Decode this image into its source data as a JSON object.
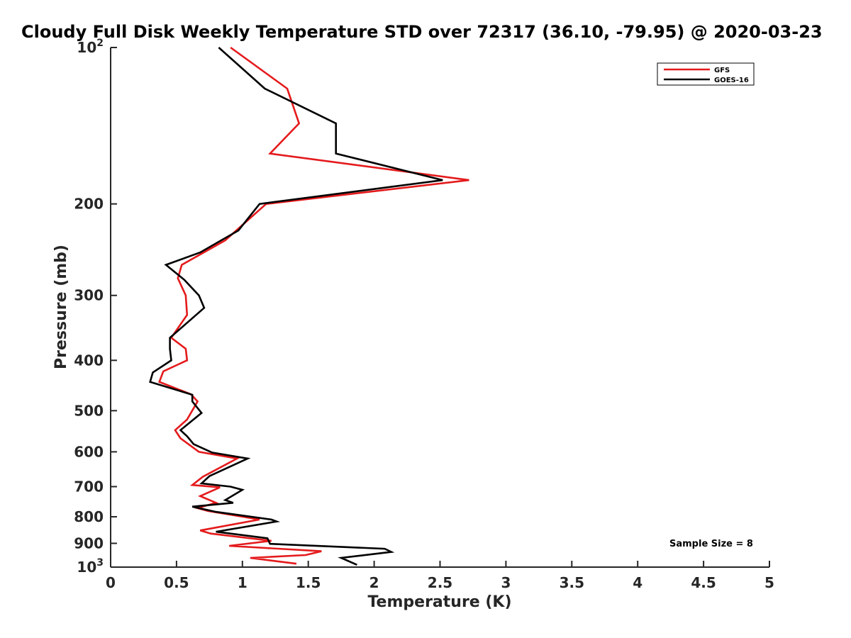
{
  "chart_data": {
    "type": "line",
    "title": "Cloudy Full Disk Weekly Temperature STD over 72317 (36.10, -79.95) @ 2020-03-23",
    "xlabel": "Temperature (K)",
    "ylabel": "Pressure (mb)",
    "xlim": [
      0,
      5
    ],
    "ylim": [
      100,
      1000
    ],
    "y_scale": "log",
    "y_reversed": true,
    "x_ticks": [
      "0",
      "0.5",
      "1",
      "1.5",
      "2",
      "2.5",
      "3",
      "3.5",
      "4",
      "4.5",
      "5"
    ],
    "y_ticks": [
      {
        "value": 100,
        "base": "10",
        "exp": "2"
      },
      {
        "value": 200,
        "label": "200"
      },
      {
        "value": 300,
        "label": "300"
      },
      {
        "value": 400,
        "label": "400"
      },
      {
        "value": 500,
        "label": "500"
      },
      {
        "value": 600,
        "label": "600"
      },
      {
        "value": 700,
        "label": "700"
      },
      {
        "value": 800,
        "label": "800"
      },
      {
        "value": 900,
        "label": "900"
      },
      {
        "value": 1000,
        "base": "10",
        "exp": "3"
      }
    ],
    "legend_position": "top-right",
    "annotation": "Sample Size = 8",
    "series": [
      {
        "name": "GFS",
        "color": "#e41a1c",
        "points": [
          [
            0.91,
            100
          ],
          [
            1.34,
            120
          ],
          [
            1.43,
            140
          ],
          [
            1.21,
            160
          ],
          [
            2.72,
            180
          ],
          [
            1.18,
            200
          ],
          [
            0.87,
            235
          ],
          [
            0.54,
            262
          ],
          [
            0.51,
            278
          ],
          [
            0.57,
            300
          ],
          [
            0.58,
            327
          ],
          [
            0.46,
            362
          ],
          [
            0.57,
            380
          ],
          [
            0.58,
            400
          ],
          [
            0.4,
            420
          ],
          [
            0.37,
            440
          ],
          [
            0.61,
            465
          ],
          [
            0.66,
            480
          ],
          [
            0.58,
            520
          ],
          [
            0.49,
            545
          ],
          [
            0.53,
            565
          ],
          [
            0.67,
            600
          ],
          [
            0.96,
            618
          ],
          [
            0.7,
            670
          ],
          [
            0.62,
            695
          ],
          [
            0.83,
            702
          ],
          [
            0.68,
            730
          ],
          [
            0.8,
            752
          ],
          [
            0.66,
            770
          ],
          [
            0.74,
            780
          ],
          [
            1.13,
            810
          ],
          [
            0.68,
            850
          ],
          [
            0.76,
            862
          ],
          [
            1.22,
            890
          ],
          [
            0.9,
            910
          ],
          [
            1.6,
            932
          ],
          [
            1.48,
            948
          ],
          [
            1.06,
            960
          ],
          [
            1.41,
            985
          ]
        ]
      },
      {
        "name": "GOES-16",
        "color": "#000000",
        "points": [
          [
            0.82,
            100
          ],
          [
            1.17,
            120
          ],
          [
            1.71,
            140
          ],
          [
            1.71,
            160
          ],
          [
            2.52,
            180
          ],
          [
            1.13,
            200
          ],
          [
            0.97,
            225
          ],
          [
            0.68,
            248
          ],
          [
            0.42,
            262
          ],
          [
            0.56,
            280
          ],
          [
            0.67,
            300
          ],
          [
            0.71,
            317
          ],
          [
            0.45,
            362
          ],
          [
            0.45,
            380
          ],
          [
            0.46,
            400
          ],
          [
            0.32,
            422
          ],
          [
            0.3,
            440
          ],
          [
            0.62,
            466
          ],
          [
            0.62,
            480
          ],
          [
            0.69,
            505
          ],
          [
            0.53,
            545
          ],
          [
            0.58,
            560
          ],
          [
            0.63,
            580
          ],
          [
            0.77,
            602
          ],
          [
            1.04,
            618
          ],
          [
            0.75,
            668
          ],
          [
            0.69,
            690
          ],
          [
            0.91,
            700
          ],
          [
            1.0,
            710
          ],
          [
            0.87,
            743
          ],
          [
            0.93,
            752
          ],
          [
            0.62,
            765
          ],
          [
            0.8,
            783
          ],
          [
            1.22,
            810
          ],
          [
            1.26,
            817
          ],
          [
            0.8,
            855
          ],
          [
            1.19,
            880
          ],
          [
            1.21,
            902
          ],
          [
            2.08,
            922
          ],
          [
            2.13,
            935
          ],
          [
            1.75,
            960
          ],
          [
            1.87,
            990
          ]
        ]
      }
    ]
  }
}
